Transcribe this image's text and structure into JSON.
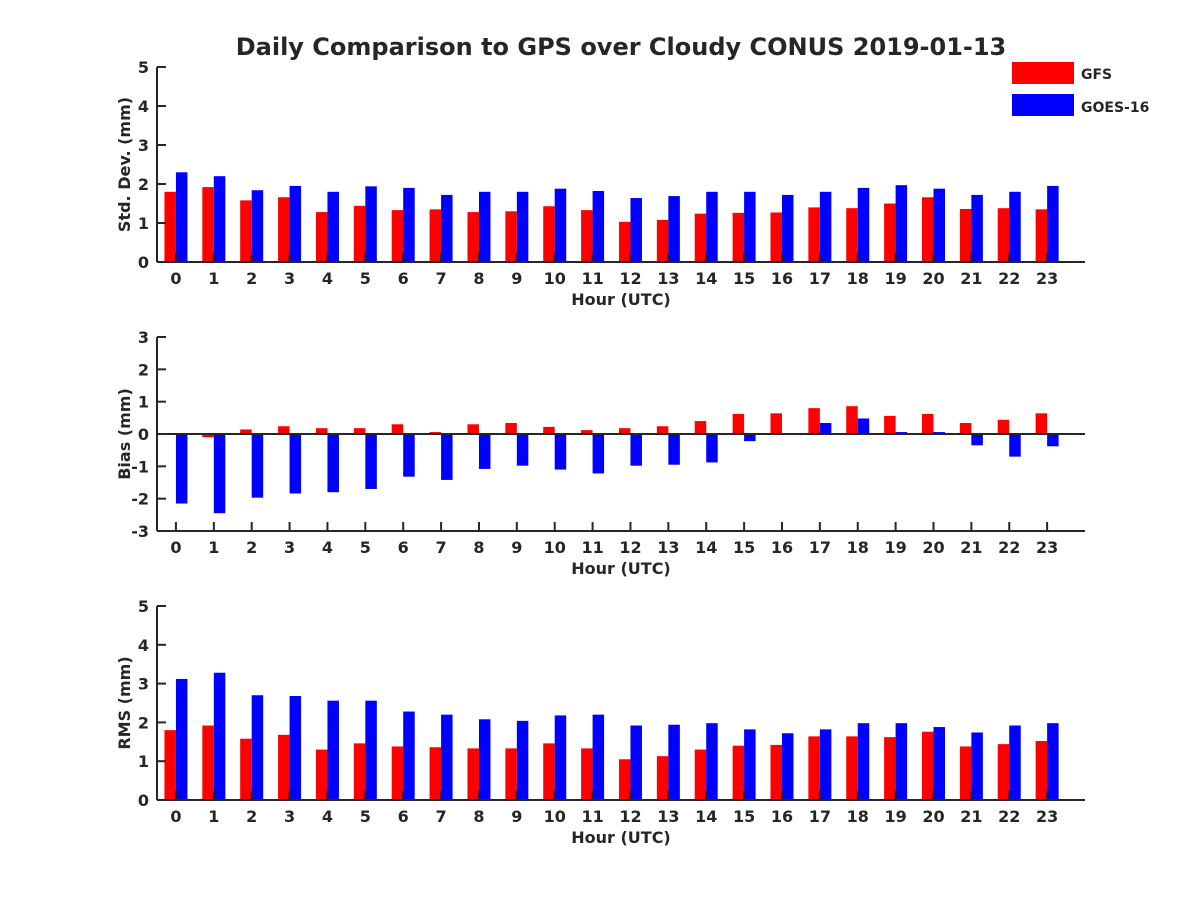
{
  "figure": {
    "title": "Daily Comparison to GPS over Cloudy CONUS 2019-01-13"
  },
  "legend": {
    "placement": "top-right, outside plot area",
    "entries": [
      {
        "name": "GFS",
        "color": "#ff0000"
      },
      {
        "name": "GOES-16",
        "color": "#0000ff"
      }
    ]
  },
  "chart_data": [
    {
      "type": "bar",
      "ylabel": "Std. Dev. (mm)",
      "xlabel": "Hour (UTC)",
      "ylim": [
        0,
        5
      ],
      "yticks": [
        0,
        1,
        2,
        3,
        4,
        5
      ],
      "categories": [
        "0",
        "1",
        "2",
        "3",
        "4",
        "5",
        "6",
        "7",
        "8",
        "9",
        "10",
        "11",
        "12",
        "13",
        "14",
        "15",
        "16",
        "17",
        "18",
        "19",
        "20",
        "21",
        "22",
        "23"
      ],
      "series": [
        {
          "name": "GFS",
          "color": "#ff0000",
          "values": [
            1.8,
            1.92,
            1.58,
            1.66,
            1.28,
            1.44,
            1.33,
            1.35,
            1.28,
            1.3,
            1.43,
            1.33,
            1.03,
            1.08,
            1.24,
            1.26,
            1.27,
            1.4,
            1.38,
            1.5,
            1.66,
            1.36,
            1.38,
            1.35
          ]
        },
        {
          "name": "GOES-16",
          "color": "#0000ff",
          "values": [
            2.3,
            2.2,
            1.84,
            1.95,
            1.8,
            1.94,
            1.9,
            1.72,
            1.8,
            1.8,
            1.88,
            1.82,
            1.64,
            1.69,
            1.8,
            1.8,
            1.72,
            1.8,
            1.9,
            1.97,
            1.88,
            1.72,
            1.8,
            1.95
          ]
        }
      ]
    },
    {
      "type": "bar",
      "ylabel": "Bias (mm)",
      "xlabel": "Hour (UTC)",
      "ylim": [
        -3,
        3
      ],
      "yticks": [
        -3,
        -2,
        -1,
        0,
        1,
        2,
        3
      ],
      "categories": [
        "0",
        "1",
        "2",
        "3",
        "4",
        "5",
        "6",
        "7",
        "8",
        "9",
        "10",
        "11",
        "12",
        "13",
        "14",
        "15",
        "16",
        "17",
        "18",
        "19",
        "20",
        "21",
        "22",
        "23"
      ],
      "series": [
        {
          "name": "GFS",
          "color": "#ff0000",
          "values": [
            0.0,
            -0.1,
            0.14,
            0.24,
            0.18,
            0.18,
            0.3,
            0.06,
            0.3,
            0.34,
            0.22,
            0.12,
            0.18,
            0.24,
            0.4,
            0.62,
            0.64,
            0.8,
            0.86,
            0.56,
            0.62,
            0.34,
            0.44,
            0.64
          ]
        },
        {
          "name": "GOES-16",
          "color": "#0000ff",
          "values": [
            -2.15,
            -2.45,
            -1.97,
            -1.84,
            -1.8,
            -1.7,
            -1.32,
            -1.42,
            -1.08,
            -0.98,
            -1.1,
            -1.22,
            -0.98,
            -0.95,
            -0.88,
            -0.22,
            0.0,
            0.34,
            0.48,
            0.06,
            0.06,
            -0.35,
            -0.7,
            -0.38
          ]
        }
      ]
    },
    {
      "type": "bar",
      "ylabel": "RMS (mm)",
      "xlabel": "Hour (UTC)",
      "ylim": [
        0,
        5
      ],
      "yticks": [
        0,
        1,
        2,
        3,
        4,
        5
      ],
      "categories": [
        "0",
        "1",
        "2",
        "3",
        "4",
        "5",
        "6",
        "7",
        "8",
        "9",
        "10",
        "11",
        "12",
        "13",
        "14",
        "15",
        "16",
        "17",
        "18",
        "19",
        "20",
        "21",
        "22",
        "23"
      ],
      "series": [
        {
          "name": "GFS",
          "color": "#ff0000",
          "values": [
            1.8,
            1.92,
            1.58,
            1.68,
            1.3,
            1.46,
            1.38,
            1.36,
            1.33,
            1.33,
            1.46,
            1.33,
            1.05,
            1.13,
            1.3,
            1.4,
            1.42,
            1.64,
            1.64,
            1.62,
            1.76,
            1.38,
            1.44,
            1.52
          ]
        },
        {
          "name": "GOES-16",
          "color": "#0000ff",
          "values": [
            3.12,
            3.28,
            2.7,
            2.68,
            2.56,
            2.56,
            2.28,
            2.2,
            2.08,
            2.04,
            2.18,
            2.2,
            1.92,
            1.94,
            1.98,
            1.82,
            1.72,
            1.82,
            1.98,
            1.98,
            1.88,
            1.74,
            1.92,
            1.98
          ]
        }
      ]
    }
  ]
}
